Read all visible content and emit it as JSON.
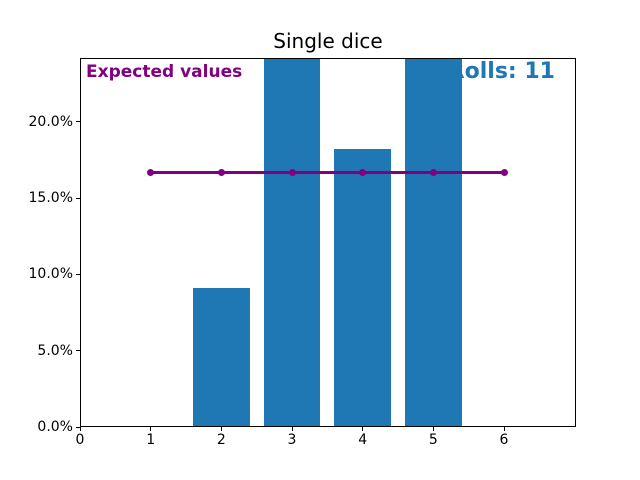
{
  "chart_data": {
    "type": "bar",
    "title": "Single dice",
    "categories": [
      1,
      2,
      3,
      4,
      5,
      6
    ],
    "series": [
      {
        "name": "observed-frequency-bars",
        "type": "bar",
        "color": "#1f77b4",
        "bar_width_units": 0.8,
        "values_pct": [
          0,
          9.1,
          24.2,
          18.2,
          24.2,
          0
        ],
        "clipped_at_top": [
          false,
          false,
          true,
          false,
          true,
          false
        ]
      },
      {
        "name": "expected-value-line",
        "type": "line",
        "color": "#800080",
        "marker": "circle",
        "values_pct": [
          16.7,
          16.7,
          16.7,
          16.7,
          16.7,
          16.7
        ]
      }
    ],
    "xlabel": "",
    "ylabel": "",
    "xlim": [
      0,
      7.02
    ],
    "ylim_pct": [
      0,
      24.2
    ],
    "xticks": [
      "0",
      "1",
      "2",
      "3",
      "4",
      "5",
      "6"
    ],
    "xtick_values": [
      0,
      1,
      2,
      3,
      4,
      5,
      6
    ],
    "yticks": [
      "0.0%",
      "5.0%",
      "10.0%",
      "15.0%",
      "20.0%"
    ],
    "ytick_values": [
      0,
      5,
      10,
      15,
      20
    ],
    "grid": false,
    "legend": null,
    "annotations": {
      "expected": {
        "text": "Expected values",
        "color": "#800080"
      },
      "rolls": {
        "text": "Rolls: 11",
        "visible_text": "olls: 11",
        "color": "#1f77b4",
        "note": "left part hidden behind bar at x=5"
      }
    }
  }
}
